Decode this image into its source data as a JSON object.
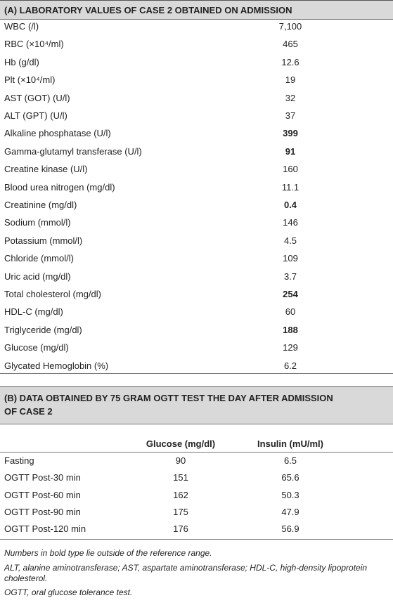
{
  "table_a": {
    "title": "(A) LABORATORY VALUES OF CASE 2 OBTAINED ON ADMISSION",
    "rows": [
      {
        "label": "WBC (/l)",
        "value": "7,100"
      },
      {
        "label": "RBC (×10⁴/ml)",
        "value": "465"
      },
      {
        "label": "Hb (g/dl)",
        "value": "12.6"
      },
      {
        "label": "Plt (×10⁴/ml)",
        "value": "19"
      },
      {
        "label": "AST (GOT) (U/l)",
        "value": "32"
      },
      {
        "label": "ALT (GPT) (U/l)",
        "value": "37"
      },
      {
        "label": "Alkaline phosphatase (U/l)",
        "value": "399",
        "bold": true
      },
      {
        "label": "Gamma-glutamyl transferase (U/l)",
        "value": "91",
        "bold": true
      },
      {
        "label": "Creatine kinase (U/l)",
        "value": "160"
      },
      {
        "label": "Blood urea nitrogen (mg/dl)",
        "value": "11.1"
      },
      {
        "label": "Creatinine (mg/dl)",
        "value": "0.4",
        "bold": true
      },
      {
        "label": "Sodium (mmol/l)",
        "value": "146"
      },
      {
        "label": "Potassium (mmol/l)",
        "value": "4.5"
      },
      {
        "label": "Chloride (mmol/l)",
        "value": "109"
      },
      {
        "label": "Uric acid (mg/dl)",
        "value": "3.7"
      },
      {
        "label": "Total cholesterol (mg/dl)",
        "value": "254",
        "bold": true
      },
      {
        "label": "HDL-C (mg/dl)",
        "value": "60"
      },
      {
        "label": "Triglyceride (mg/dl)",
        "value": "188",
        "bold": true
      },
      {
        "label": "Glucose (mg/dl)",
        "value": "129"
      },
      {
        "label": "Glycated Hemoglobin (%)",
        "value": "6.2"
      }
    ]
  },
  "table_b": {
    "title": "(B) DATA OBTAINED BY 75 GRAM OGTT TEST THE DAY AFTER ADMISSION OF CASE 2",
    "columns": [
      "Glucose (mg/dl)",
      "Insulin (mU/ml)"
    ],
    "rows": [
      [
        "Fasting",
        "90",
        "6.5"
      ],
      [
        "OGTT Post-30 min",
        "151",
        "65.6"
      ],
      [
        "OGTT Post-60 min",
        "162",
        "50.3"
      ],
      [
        "OGTT Post-90 min",
        "175",
        "47.9"
      ],
      [
        "OGTT Post-120 min",
        "176",
        "56.9"
      ]
    ]
  },
  "footnotes": [
    "Numbers in bold type lie outside of the reference range.",
    "ALT, alanine aminotransferase; AST, aspartate aminotransferase; HDL-C, high-density lipoprotein cholesterol.",
    "OGTT, oral glucose tolerance test."
  ]
}
